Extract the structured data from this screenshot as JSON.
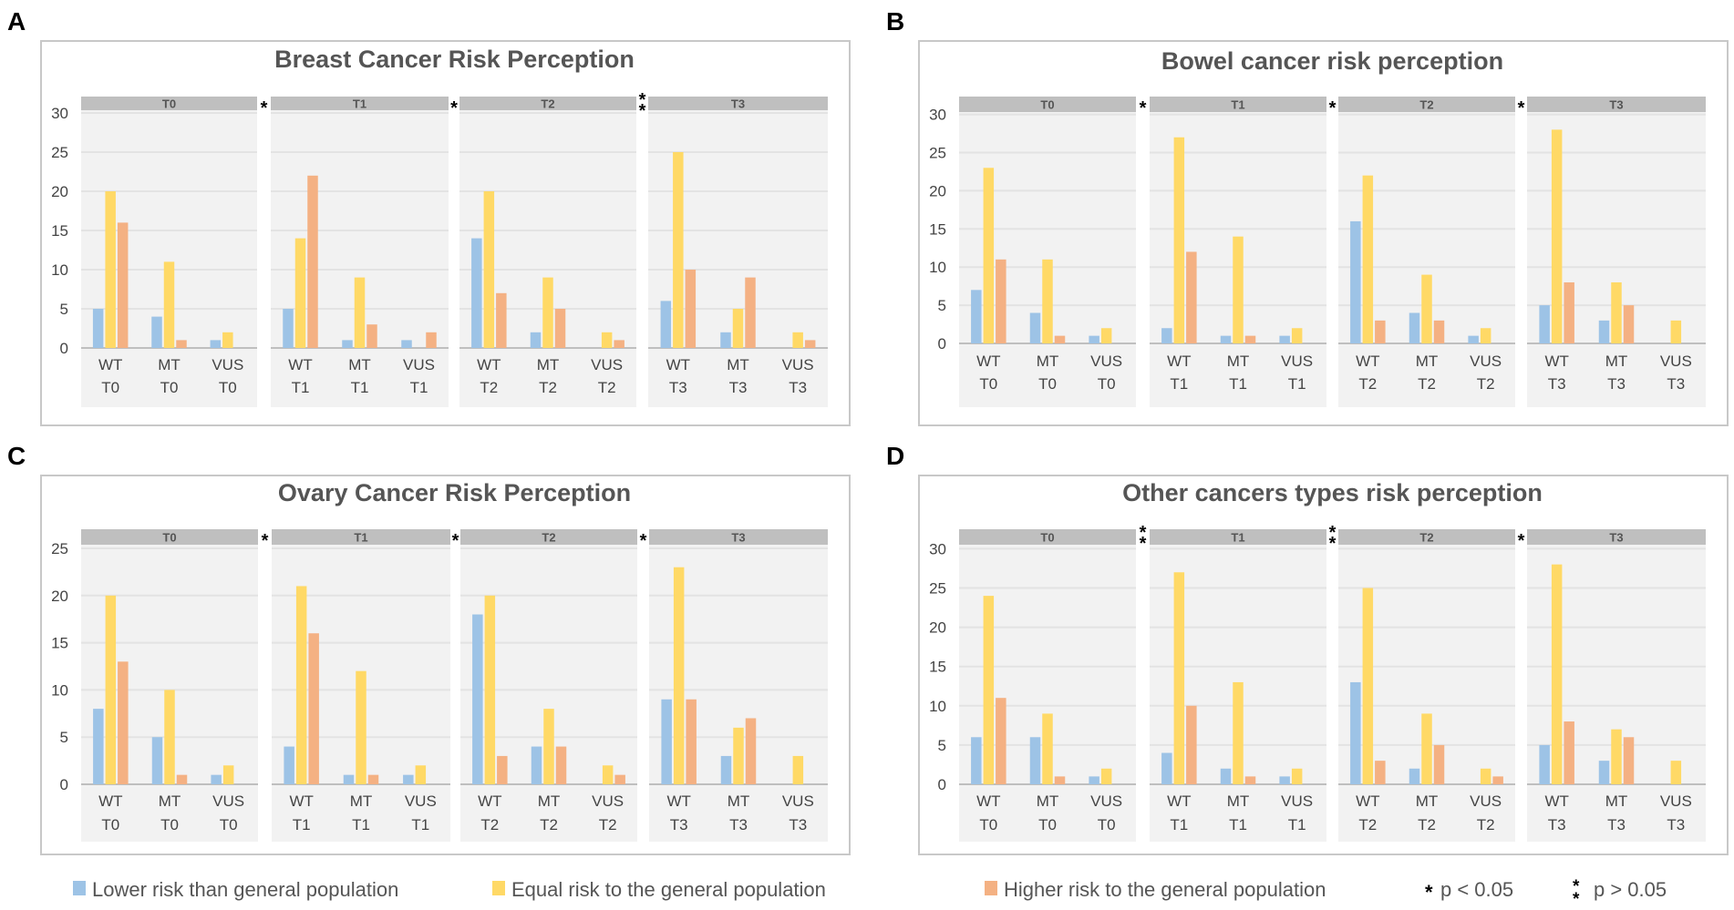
{
  "colors": {
    "lower": "#9DC3E6",
    "equal": "#FFD966",
    "higher": "#F4B183",
    "strip": "#BFBFBF",
    "facet_bg": "#F2F2F2",
    "grid": "#E3E3E3",
    "frame": "#C8C8C8"
  },
  "legend": {
    "lower": "Lower risk than general population",
    "equal": "Equal risk to the general population",
    "higher": "Higher risk to the general population",
    "p_sig_symbol": "*",
    "p_sig": "p < 0.05",
    "p_ns_symbol": "**",
    "p_ns": "p > 0.05"
  },
  "chart_data": [
    {
      "type": "bar",
      "panel": "A",
      "title": "Breast Cancer Risk Perception",
      "ylim": [
        0,
        30
      ],
      "yticks": [
        0,
        5,
        10,
        15,
        20,
        25,
        30
      ],
      "facets": [
        "T0",
        "T1",
        "T2",
        "T3"
      ],
      "separators": [
        "*",
        "*",
        "**"
      ],
      "categories": [
        [
          "WT",
          "T0"
        ],
        [
          "MT",
          "T0"
        ],
        [
          "VUS",
          "T0"
        ],
        [
          "WT",
          "T1"
        ],
        [
          "MT",
          "T1"
        ],
        [
          "VUS",
          "T1"
        ],
        [
          "WT",
          "T2"
        ],
        [
          "MT",
          "T2"
        ],
        [
          "VUS",
          "T2"
        ],
        [
          "WT",
          "T3"
        ],
        [
          "MT",
          "T3"
        ],
        [
          "VUS",
          "T3"
        ]
      ],
      "series": [
        {
          "name": "Lower risk than general population",
          "key": "lower",
          "values": [
            5,
            4,
            1,
            5,
            1,
            1,
            14,
            2,
            0,
            6,
            2,
            0
          ]
        },
        {
          "name": "Equal risk to the general population",
          "key": "equal",
          "values": [
            20,
            11,
            2,
            14,
            9,
            0,
            20,
            9,
            2,
            25,
            5,
            2
          ]
        },
        {
          "name": "Higher risk to the general population",
          "key": "higher",
          "values": [
            16,
            1,
            0,
            22,
            3,
            2,
            7,
            5,
            1,
            10,
            9,
            1
          ]
        }
      ]
    },
    {
      "type": "bar",
      "panel": "B",
      "title": "Bowel cancer risk perception",
      "ylim": [
        0,
        30
      ],
      "yticks": [
        0,
        5,
        10,
        15,
        20,
        25,
        30
      ],
      "facets": [
        "T0",
        "T1",
        "T2",
        "T3"
      ],
      "separators": [
        "*",
        "*",
        "*"
      ],
      "categories": [
        [
          "WT",
          "T0"
        ],
        [
          "MT",
          "T0"
        ],
        [
          "VUS",
          "T0"
        ],
        [
          "WT",
          "T1"
        ],
        [
          "MT",
          "T1"
        ],
        [
          "VUS",
          "T1"
        ],
        [
          "WT",
          "T2"
        ],
        [
          "MT",
          "T2"
        ],
        [
          "VUS",
          "T2"
        ],
        [
          "WT",
          "T3"
        ],
        [
          "MT",
          "T3"
        ],
        [
          "VUS",
          "T3"
        ]
      ],
      "series": [
        {
          "name": "Lower risk than general population",
          "key": "lower",
          "values": [
            7,
            4,
            1,
            2,
            1,
            1,
            16,
            4,
            1,
            5,
            3,
            0
          ]
        },
        {
          "name": "Equal risk to the general population",
          "key": "equal",
          "values": [
            23,
            11,
            2,
            27,
            14,
            2,
            22,
            9,
            2,
            28,
            8,
            3
          ]
        },
        {
          "name": "Higher risk to the general population",
          "key": "higher",
          "values": [
            11,
            1,
            0,
            12,
            1,
            0,
            3,
            3,
            0,
            8,
            5,
            0
          ]
        }
      ]
    },
    {
      "type": "bar",
      "panel": "C",
      "title": "Ovary Cancer Risk Perception",
      "ylim": [
        0,
        25
      ],
      "yticks": [
        0,
        5,
        10,
        15,
        20,
        25
      ],
      "facets": [
        "T0",
        "T1",
        "T2",
        "T3"
      ],
      "separators": [
        "*",
        "*",
        "*"
      ],
      "categories": [
        [
          "WT",
          "T0"
        ],
        [
          "MT",
          "T0"
        ],
        [
          "VUS",
          "T0"
        ],
        [
          "WT",
          "T1"
        ],
        [
          "MT",
          "T1"
        ],
        [
          "VUS",
          "T1"
        ],
        [
          "WT",
          "T2"
        ],
        [
          "MT",
          "T2"
        ],
        [
          "VUS",
          "T2"
        ],
        [
          "WT",
          "T3"
        ],
        [
          "MT",
          "T3"
        ],
        [
          "VUS",
          "T3"
        ]
      ],
      "series": [
        {
          "name": "Lower risk than general population",
          "key": "lower",
          "values": [
            8,
            5,
            1,
            4,
            1,
            1,
            18,
            4,
            0,
            9,
            3,
            0
          ]
        },
        {
          "name": "Equal risk to the general population",
          "key": "equal",
          "values": [
            20,
            10,
            2,
            21,
            12,
            2,
            20,
            8,
            2,
            23,
            6,
            3
          ]
        },
        {
          "name": "Higher risk to the general population",
          "key": "higher",
          "values": [
            13,
            1,
            0,
            16,
            1,
            0,
            3,
            4,
            1,
            9,
            7,
            0
          ]
        }
      ]
    },
    {
      "type": "bar",
      "panel": "D",
      "title": "Other cancers types risk perception",
      "ylim": [
        0,
        30
      ],
      "yticks": [
        0,
        5,
        10,
        15,
        20,
        25,
        30
      ],
      "facets": [
        "T0",
        "T1",
        "T2",
        "T3"
      ],
      "separators": [
        "**",
        "**",
        "*"
      ],
      "categories": [
        [
          "WT",
          "T0"
        ],
        [
          "MT",
          "T0"
        ],
        [
          "VUS",
          "T0"
        ],
        [
          "WT",
          "T1"
        ],
        [
          "MT",
          "T1"
        ],
        [
          "VUS",
          "T1"
        ],
        [
          "WT",
          "T2"
        ],
        [
          "MT",
          "T2"
        ],
        [
          "VUS",
          "T2"
        ],
        [
          "WT",
          "T3"
        ],
        [
          "MT",
          "T3"
        ],
        [
          "VUS",
          "T3"
        ]
      ],
      "series": [
        {
          "name": "Lower risk than general population",
          "key": "lower",
          "values": [
            6,
            6,
            1,
            4,
            2,
            1,
            13,
            2,
            0,
            5,
            3,
            0
          ]
        },
        {
          "name": "Equal risk to the general population",
          "key": "equal",
          "values": [
            24,
            9,
            2,
            27,
            13,
            2,
            25,
            9,
            2,
            28,
            7,
            3
          ]
        },
        {
          "name": "Higher risk to the general population",
          "key": "higher",
          "values": [
            11,
            1,
            0,
            10,
            1,
            0,
            3,
            5,
            1,
            8,
            6,
            0
          ]
        }
      ]
    }
  ]
}
